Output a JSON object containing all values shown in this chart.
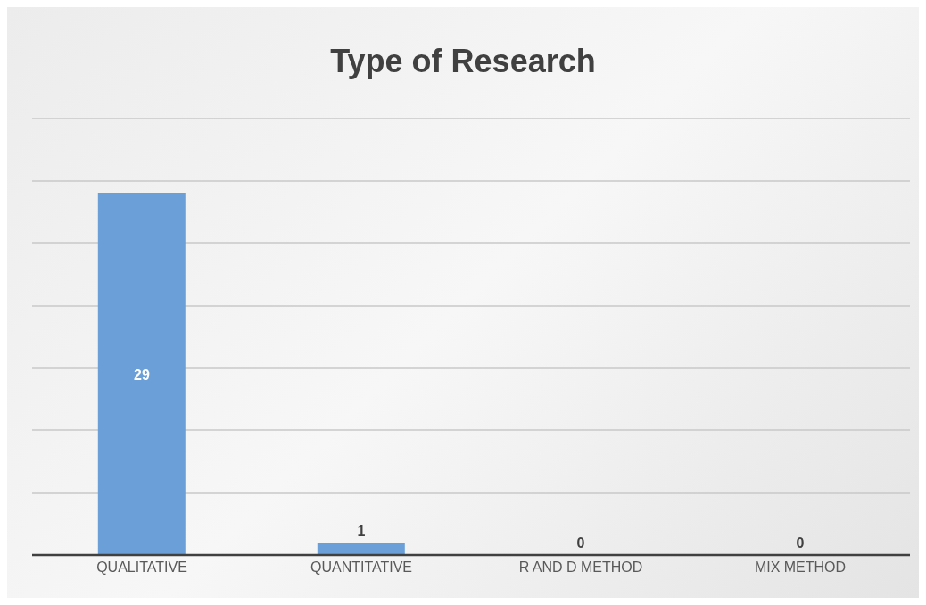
{
  "chart_data": {
    "type": "bar",
    "title": "Type of Research",
    "categories": [
      "QUALITATIVE",
      "QUANTITATIVE",
      "R AND D METHOD",
      "MIX METHOD"
    ],
    "values": [
      29,
      1,
      0,
      0
    ],
    "color": "#6a9fd8",
    "ylim": [
      0,
      35
    ],
    "grid": "y",
    "tick_labels": "x",
    "data_labels": true
  }
}
